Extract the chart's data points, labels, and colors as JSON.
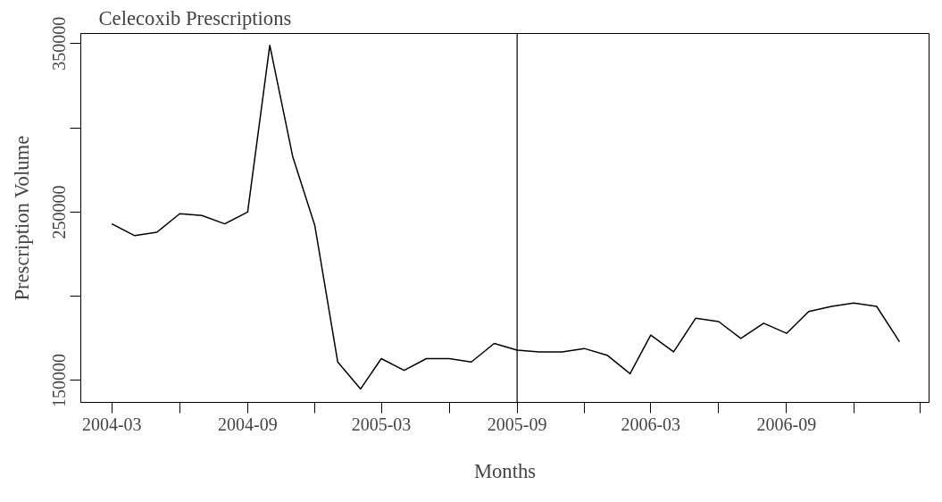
{
  "chart_data": {
    "type": "line",
    "title": "Celecoxib Prescriptions",
    "xlabel": "Months",
    "ylabel": "Prescription Volume",
    "x": [
      "2004-03",
      "2004-04",
      "2004-05",
      "2004-06",
      "2004-07",
      "2004-08",
      "2004-09",
      "2004-10",
      "2004-11",
      "2004-12",
      "2005-01",
      "2005-02",
      "2005-03",
      "2005-04",
      "2005-05",
      "2005-06",
      "2005-07",
      "2005-08",
      "2005-09",
      "2005-10",
      "2005-11",
      "2005-12",
      "2006-01",
      "2006-02",
      "2006-03",
      "2006-04",
      "2006-05",
      "2006-06",
      "2006-07",
      "2006-08",
      "2006-09",
      "2006-10",
      "2006-11",
      "2006-12",
      "2007-01",
      "2007-02"
    ],
    "series": [
      {
        "color": "#000000",
        "values": [
          243000,
          236000,
          238000,
          249000,
          248000,
          243000,
          250000,
          349000,
          283000,
          242000,
          161000,
          145000,
          163000,
          156000,
          163000,
          163000,
          161000,
          172000,
          168000,
          167000,
          167000,
          169000,
          165000,
          154000,
          177000,
          167000,
          187000,
          185000,
          175000,
          184000,
          178000,
          191000,
          194000,
          196000,
          194000,
          173000
        ]
      }
    ],
    "xlim": [
      "2004-01-19",
      "2007-03-13"
    ],
    "ylim": [
      137000,
      356000
    ],
    "xticks": [
      {
        "value": "2004-03",
        "label": "2004-03"
      },
      {
        "value": "2004-06",
        "label": null
      },
      {
        "value": "2004-09",
        "label": "2004-09"
      },
      {
        "value": "2004-12",
        "label": null
      },
      {
        "value": "2005-03",
        "label": "2005-03"
      },
      {
        "value": "2005-06",
        "label": null
      },
      {
        "value": "2005-09",
        "label": "2005-09"
      },
      {
        "value": "2005-12",
        "label": null
      },
      {
        "value": "2006-03",
        "label": "2006-03"
      },
      {
        "value": "2006-06",
        "label": null
      },
      {
        "value": "2006-09",
        "label": "2006-09"
      },
      {
        "value": "2006-12",
        "label": null
      },
      {
        "value": "2007-03",
        "label": null
      }
    ],
    "yticks": [
      150000,
      {
        "value": 200000,
        "label": null
      },
      250000,
      {
        "value": 300000,
        "label": null
      },
      350000
    ],
    "ref_lines": [
      {
        "axis": "x",
        "value": "2005-09",
        "color": "#000000",
        "line_style": "solid"
      }
    ],
    "grid": false,
    "marker": "none",
    "line_style": "solid"
  }
}
